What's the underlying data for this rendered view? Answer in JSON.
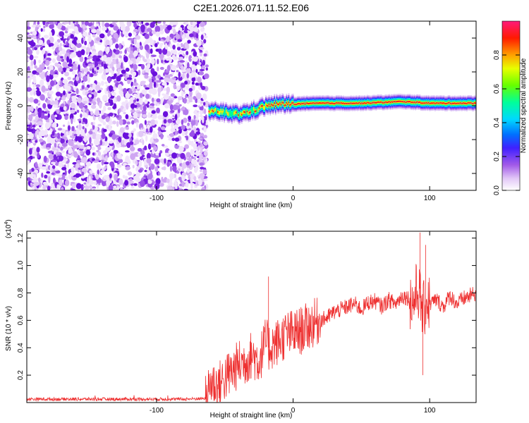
{
  "title": "C2E1.2026.071.11.52.E06",
  "chart_data": [
    {
      "type": "heatmap",
      "xlabel": "Height of straight line (km)",
      "ylabel": "Frequency (Hz)",
      "xlim": [
        -195,
        134
      ],
      "ylim": [
        -50,
        50
      ],
      "xticks": [
        -100,
        0,
        100
      ],
      "yticks": [
        -40,
        -20,
        0,
        20,
        40
      ],
      "noise_region_x": [
        -195,
        -63
      ],
      "signal_track": [
        {
          "x": -62,
          "y": -3
        },
        {
          "x": -50,
          "y": -4
        },
        {
          "x": -40,
          "y": -5
        },
        {
          "x": -30,
          "y": -3
        },
        {
          "x": -20,
          "y": 0
        },
        {
          "x": -10,
          "y": 1
        },
        {
          "x": 0,
          "y": 1
        },
        {
          "x": 20,
          "y": 1.5
        },
        {
          "x": 50,
          "y": 1.5
        },
        {
          "x": 80,
          "y": 2.5
        },
        {
          "x": 100,
          "y": 1.5
        },
        {
          "x": 134,
          "y": 1.5
        }
      ],
      "colorbar": {
        "label": "Normalized spectral amplitude",
        "ticks": [
          0.0,
          0.2,
          0.4,
          0.6,
          0.8
        ],
        "colors": [
          "#ffffff",
          "#d7b7f4",
          "#8e2de2",
          "#1f1fff",
          "#00c8ff",
          "#00ff80",
          "#7fff00",
          "#ffff00",
          "#ff8000",
          "#ff0000",
          "#ff1080"
        ]
      }
    },
    {
      "type": "line",
      "xlabel": "Height of straight line (km)",
      "ylabel": "SNR (10 * v/v)",
      "scale_label": "(x10",
      "scale_exp": "4",
      "xlim": [
        -195,
        134
      ],
      "ylim": [
        0,
        1.25
      ],
      "xticks": [
        -100,
        0,
        100
      ],
      "yticks": [
        0.2,
        0.4,
        0.6,
        0.8,
        1.0,
        1.2
      ],
      "color": "#ee3030",
      "series": [
        {
          "x": [
            -195,
            -150,
            -100,
            -80,
            -64,
            -60,
            -55,
            -50,
            -45,
            -40,
            -35,
            -30,
            -25,
            -20,
            -18,
            -15,
            -10,
            -5,
            0,
            5,
            10,
            15,
            20,
            25,
            30,
            35,
            40,
            45,
            50,
            55,
            60,
            65,
            70,
            75,
            80,
            85,
            88,
            90,
            92,
            95,
            98,
            100,
            105,
            110,
            115,
            120,
            125,
            130,
            134
          ],
          "y": [
            0.025,
            0.025,
            0.025,
            0.025,
            0.03,
            0.15,
            0.12,
            0.18,
            0.22,
            0.28,
            0.3,
            0.35,
            0.3,
            0.45,
            0.4,
            0.42,
            0.45,
            0.5,
            0.5,
            0.52,
            0.55,
            0.58,
            0.6,
            0.62,
            0.66,
            0.68,
            0.7,
            0.72,
            0.68,
            0.73,
            0.74,
            0.7,
            0.75,
            0.72,
            0.78,
            0.76,
            0.72,
            0.8,
            0.82,
            0.65,
            0.75,
            0.72,
            0.75,
            0.7,
            0.78,
            0.72,
            0.76,
            0.78,
            0.8
          ]
        }
      ],
      "spikes": [
        {
          "x": -18,
          "y": 0.92
        },
        {
          "x": 93,
          "y": 1.24
        },
        {
          "x": 95,
          "y": 0.2
        },
        {
          "x": 97,
          "y": 1.15
        }
      ]
    }
  ]
}
